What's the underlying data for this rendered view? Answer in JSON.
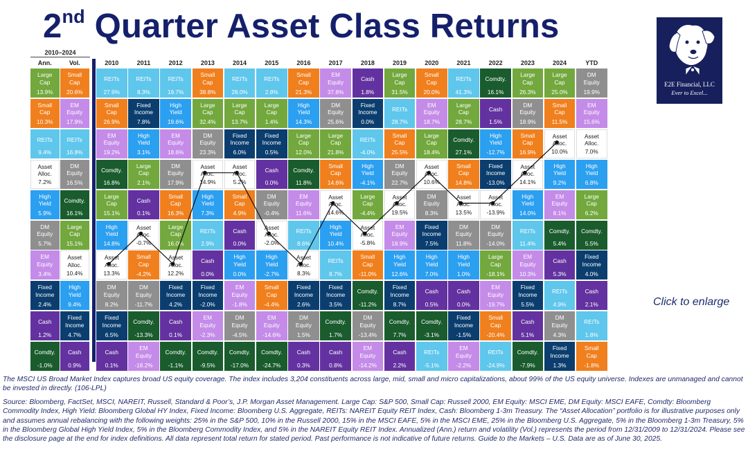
{
  "title": {
    "main": "Quarter Asset Class Returns",
    "ordinal_num": "2",
    "ordinal_sup": "nd"
  },
  "logo": {
    "name": "E2E Financial, LLC",
    "tagline": "Ever to Excel..."
  },
  "click_label": "Click to enlarge",
  "period_label": "2010–2024",
  "chart_data": {
    "type": "table",
    "columns": [
      "Ann.",
      "Vol.",
      "2010",
      "2011",
      "2012",
      "2013",
      "2014",
      "2015",
      "2016",
      "2017",
      "2018",
      "2019",
      "2020",
      "2021",
      "2022",
      "2023",
      "2024",
      "YTD"
    ],
    "asset_colors": {
      "Large Cap": "#72a83d",
      "Small Cap": "#f07f1d",
      "EM Equity": "#c48be8",
      "DM Equity": "#8f8f8f",
      "Asset Alloc.": "#ffffff",
      "High Yield": "#2b9ff0",
      "Fixed Income": "#0b3e6e",
      "REITs": "#5fc6ec",
      "Cash": "#6332a0",
      "Comdty.": "#1a5c2d"
    },
    "grid": [
      [
        [
          "Large Cap",
          "13.9%"
        ],
        [
          "Small Cap",
          "20.6%"
        ],
        [
          "REITs",
          "27.9%"
        ],
        [
          "REITs",
          "8.3%"
        ],
        [
          "REITs",
          "19.7%"
        ],
        [
          "Small Cap",
          "38.8%"
        ],
        [
          "REITs",
          "28.0%"
        ],
        [
          "REITs",
          "2.8%"
        ],
        [
          "Small Cap",
          "21.3%"
        ],
        [
          "EM Equity",
          "37.8%"
        ],
        [
          "Cash",
          "1.8%"
        ],
        [
          "Large Cap",
          "31.5%"
        ],
        [
          "Small Cap",
          "20.0%"
        ],
        [
          "REITs",
          "41.3%"
        ],
        [
          "Comdty.",
          "16.1%"
        ],
        [
          "Large Cap",
          "26.3%"
        ],
        [
          "Large Cap",
          "25.0%"
        ],
        [
          "DM Equity",
          "19.9%"
        ]
      ],
      [
        [
          "Small Cap",
          "10.3%"
        ],
        [
          "EM Equity",
          "17.9%"
        ],
        [
          "Small Cap",
          "26.9%"
        ],
        [
          "Fixed Income",
          "7.8%"
        ],
        [
          "High Yield",
          "19.6%"
        ],
        [
          "Large Cap",
          "32.4%"
        ],
        [
          "Large Cap",
          "13.7%"
        ],
        [
          "Large Cap",
          "1.4%"
        ],
        [
          "High Yield",
          "14.3%"
        ],
        [
          "DM Equity",
          "25.6%"
        ],
        [
          "Fixed Income",
          "0.0%"
        ],
        [
          "REITs",
          "28.7%"
        ],
        [
          "EM Equity",
          "18.7%"
        ],
        [
          "Large Cap",
          "28.7%"
        ],
        [
          "Cash",
          "1.5%"
        ],
        [
          "DM Equity",
          "18.9%"
        ],
        [
          "Small Cap",
          "11.5%"
        ],
        [
          "EM Equity",
          "15.6%"
        ]
      ],
      [
        [
          "REITs",
          "9.4%"
        ],
        [
          "REITs",
          "16.8%"
        ],
        [
          "EM Equity",
          "19.2%"
        ],
        [
          "High Yield",
          "3.1%"
        ],
        [
          "EM Equity",
          "18.6%"
        ],
        [
          "DM Equity",
          "23.3%"
        ],
        [
          "Fixed Income",
          "6.0%"
        ],
        [
          "Fixed Income",
          "0.5%"
        ],
        [
          "Large Cap",
          "12.0%"
        ],
        [
          "Large Cap",
          "21.8%"
        ],
        [
          "REITs",
          "-4.0%"
        ],
        [
          "Small Cap",
          "25.5%"
        ],
        [
          "Large Cap",
          "18.4%"
        ],
        [
          "Comdty.",
          "27.1%"
        ],
        [
          "High Yield",
          "-12.7%"
        ],
        [
          "Small Cap",
          "16.9%"
        ],
        [
          "Asset Alloc.",
          "10.0%"
        ],
        [
          "Asset Alloc.",
          "7.0%"
        ]
      ],
      [
        [
          "Asset Alloc.",
          "7.2%"
        ],
        [
          "DM Equity",
          "16.5%"
        ],
        [
          "Comdty.",
          "16.8%"
        ],
        [
          "Large Cap",
          "2.1%"
        ],
        [
          "DM Equity",
          "17.9%"
        ],
        [
          "Asset Alloc.",
          "14.9%"
        ],
        [
          "Asset Alloc.",
          "5.2%"
        ],
        [
          "Cash",
          "0.0%"
        ],
        [
          "Comdty.",
          "11.8%"
        ],
        [
          "Small Cap",
          "14.6%"
        ],
        [
          "High Yield",
          "-4.1%"
        ],
        [
          "DM Equity",
          "22.7%"
        ],
        [
          "Asset Alloc.",
          "10.6%"
        ],
        [
          "Small Cap",
          "14.8%"
        ],
        [
          "Fixed Income",
          "-13.0%"
        ],
        [
          "Asset Alloc.",
          "14.1%"
        ],
        [
          "High Yield",
          "9.2%"
        ],
        [
          "High Yield",
          "6.8%"
        ]
      ],
      [
        [
          "High Yield",
          "5.9%"
        ],
        [
          "Comdty.",
          "16.1%"
        ],
        [
          "Large Cap",
          "15.1%"
        ],
        [
          "Cash",
          "0.1%"
        ],
        [
          "Small Cap",
          "16.3%"
        ],
        [
          "High Yield",
          "7.3%"
        ],
        [
          "Small Cap",
          "4.9%"
        ],
        [
          "DM Equity",
          "-0.4%"
        ],
        [
          "EM Equity",
          "11.6%"
        ],
        [
          "Asset Alloc.",
          "14.6%"
        ],
        [
          "Large Cap",
          "-4.4%"
        ],
        [
          "Asset Alloc.",
          "19.5%"
        ],
        [
          "DM Equity",
          "8.3%"
        ],
        [
          "Asset Alloc.",
          "13.5%"
        ],
        [
          "Asset Alloc.",
          "-13.9%"
        ],
        [
          "High Yield",
          "14.0%"
        ],
        [
          "EM Equity",
          "8.1%"
        ],
        [
          "Large Cap",
          "6.2%"
        ]
      ],
      [
        [
          "DM Equity",
          "5.7%"
        ],
        [
          "Large Cap",
          "15.1%"
        ],
        [
          "High Yield",
          "14.8%"
        ],
        [
          "Asset Alloc.",
          "-0.7%"
        ],
        [
          "Large Cap",
          "16.0%"
        ],
        [
          "REITs",
          "2.9%"
        ],
        [
          "Cash",
          "0.0%"
        ],
        [
          "Asset Alloc.",
          "-2.0%"
        ],
        [
          "REITs",
          "8.6%"
        ],
        [
          "High Yield",
          "10.4%"
        ],
        [
          "Asset Alloc.",
          "-5.8%"
        ],
        [
          "EM Equity",
          "18.9%"
        ],
        [
          "Fixed Income",
          "7.5%"
        ],
        [
          "DM Equity",
          "11.8%"
        ],
        [
          "DM Equity",
          "-14.0%"
        ],
        [
          "REITs",
          "11.4%"
        ],
        [
          "Comdty.",
          "5.4%"
        ],
        [
          "Comdty.",
          "5.5%"
        ]
      ],
      [
        [
          "EM Equity",
          "3.4%"
        ],
        [
          "Asset Alloc.",
          "10.4%"
        ],
        [
          "Asset Alloc.",
          "13.3%"
        ],
        [
          "Small Cap",
          "-4.2%"
        ],
        [
          "Asset Alloc.",
          "12.2%"
        ],
        [
          "Cash",
          "0.0%"
        ],
        [
          "High Yield",
          "0.0%"
        ],
        [
          "High Yield",
          "-2.7%"
        ],
        [
          "Asset Alloc.",
          "8.3%"
        ],
        [
          "REITs",
          "8.7%"
        ],
        [
          "Small Cap",
          "-11.0%"
        ],
        [
          "High Yield",
          "12.6%"
        ],
        [
          "High Yield",
          "7.0%"
        ],
        [
          "High Yield",
          "1.0%"
        ],
        [
          "Large Cap",
          "-18.1%"
        ],
        [
          "EM Equity",
          "10.3%"
        ],
        [
          "Cash",
          "5.3%"
        ],
        [
          "Fixed Income",
          "4.0%"
        ]
      ],
      [
        [
          "Fixed Income",
          "2.4%"
        ],
        [
          "High Yield",
          "9.4%"
        ],
        [
          "DM Equity",
          "8.2%"
        ],
        [
          "DM Equity",
          "-11.7%"
        ],
        [
          "Fixed Income",
          "4.2%"
        ],
        [
          "Fixed Income",
          "-2.0%"
        ],
        [
          "EM Equity",
          "-1.8%"
        ],
        [
          "Small Cap",
          "-4.4%"
        ],
        [
          "Fixed Income",
          "2.6%"
        ],
        [
          "Fixed Income",
          "3.5%"
        ],
        [
          "Comdty.",
          "-11.2%"
        ],
        [
          "Fixed Income",
          "8.7%"
        ],
        [
          "Cash",
          "0.5%"
        ],
        [
          "Cash",
          "0.0%"
        ],
        [
          "EM Equity",
          "-19.7%"
        ],
        [
          "Fixed Income",
          "5.5%"
        ],
        [
          "REITs",
          "4.9%"
        ],
        [
          "Cash",
          "2.1%"
        ]
      ],
      [
        [
          "Cash",
          "1.2%"
        ],
        [
          "Fixed Income",
          "4.7%"
        ],
        [
          "Fixed Income",
          "6.5%"
        ],
        [
          "Comdty.",
          "-13.3%"
        ],
        [
          "Cash",
          "0.1%"
        ],
        [
          "EM Equity",
          "-2.3%"
        ],
        [
          "DM Equity",
          "-4.5%"
        ],
        [
          "EM Equity",
          "-14.6%"
        ],
        [
          "DM Equity",
          "1.5%"
        ],
        [
          "Comdty.",
          "1.7%"
        ],
        [
          "DM Equity",
          "-13.4%"
        ],
        [
          "Comdty.",
          "7.7%"
        ],
        [
          "Comdty.",
          "-3.1%"
        ],
        [
          "Fixed Income",
          "-1.5%"
        ],
        [
          "Small Cap",
          "-20.4%"
        ],
        [
          "Cash",
          "5.1%"
        ],
        [
          "DM Equity",
          "4.3%"
        ],
        [
          "REITs",
          "1.8%"
        ]
      ],
      [
        [
          "Comdty.",
          "-1.0%"
        ],
        [
          "Cash",
          "0.9%"
        ],
        [
          "Cash",
          "0.1%"
        ],
        [
          "EM Equity",
          "-18.2%"
        ],
        [
          "Comdty.",
          "-1.1%"
        ],
        [
          "Comdty.",
          "-9.5%"
        ],
        [
          "Comdty.",
          "-17.0%"
        ],
        [
          "Comdty.",
          "-24.7%"
        ],
        [
          "Cash",
          "0.3%"
        ],
        [
          "Cash",
          "0.8%"
        ],
        [
          "EM Equity",
          "-14.2%"
        ],
        [
          "Cash",
          "2.2%"
        ],
        [
          "REITs",
          "-5.1%"
        ],
        [
          "EM Equity",
          "-2.2%"
        ],
        [
          "REITs",
          "-24.9%"
        ],
        [
          "Comdty.",
          "-7.9%"
        ],
        [
          "Fixed Income",
          "1.3%"
        ],
        [
          "Small Cap",
          "-1.8%"
        ]
      ]
    ]
  },
  "notes": [
    "The MSCI US Broad Market Index captures broad US equity coverage. The index includes 3,204 constituents across large, mid, small and micro capitalizations, about 99% of the US equity universe. Indexes are unmanaged and cannot be invested in directly. (106-LPL)",
    "Source: Bloomberg, FactSet, MSCI, NAREIT, Russell, Standard & Poor’s, J.P. Morgan Asset Management. Large Cap: S&P 500, Small Cap: Russell 2000, EM Equity: MSCI EME, DM Equity: MSCI EAFE, Comdty: Bloomberg Commodity Index, High Yield: Bloomberg Global HY Index, Fixed Income: Bloomberg U.S. Aggregate, REITs: NAREIT Equity REIT Index, Cash: Bloomberg 1-3m Treasury. The “Asset Allocation” portfolio is for illustrative purposes only and assumes annual rebalancing with the following weights: 25% in the S&P 500, 10% in the Russell 2000, 15% in the MSCI EAFE, 5% in the MSCI EME, 25% in the Bloomberg U.S. Aggregate, 5% in the Bloomberg 1-3m Treasury, 5% in the Bloomberg Global High Yield Index, 5% in the Bloomberg Commodity Index, and 5% in the NAREIT Equity REIT Index. Annualized (Ann.) return and volatility (Vol.) represents the period from 12/31/2009 to 12/31/2024. Please see the disclosure page at the end for index definitions. All data represent total return for stated period. Past performance is not indicative of future returns. Guide to the Markets – U.S. Data are as of June 30, 2025."
  ]
}
